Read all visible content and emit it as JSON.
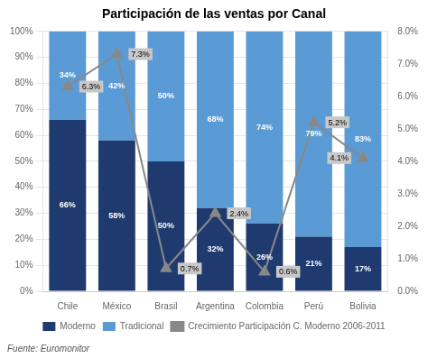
{
  "chart_data": {
    "type": "bar",
    "title": "Participación de las ventas por Canal",
    "categories": [
      "Chile",
      "México",
      "Brasil",
      "Argentina",
      "Colombia",
      "Perú",
      "Bolivia"
    ],
    "stacked": true,
    "series": [
      {
        "name": "Moderno",
        "color": "#1F3A6E",
        "values": [
          66,
          58,
          50,
          32,
          26,
          21,
          17
        ],
        "value_labels": [
          "66%",
          "58%",
          "50%",
          "32%",
          "26%",
          "21%",
          "17%"
        ]
      },
      {
        "name": "Tradicional",
        "color": "#5B9BD5",
        "values": [
          34,
          42,
          50,
          68,
          74,
          79,
          83
        ],
        "value_labels": [
          "34%",
          "42%",
          "50%",
          "68%",
          "74%",
          "79%",
          "83%"
        ]
      },
      {
        "name": "Crecimiento Participación C. Moderno 2006-2011",
        "type": "line",
        "axis": "y2",
        "color": "#888888",
        "marker": "triangle",
        "values": [
          6.3,
          7.3,
          0.7,
          2.4,
          0.6,
          5.2,
          4.1
        ],
        "value_labels": [
          "6.3%",
          "7.3%",
          "0.7%",
          "2.4%",
          "0.6%",
          "5.2%",
          "4.1%"
        ]
      }
    ],
    "ylim": [
      0,
      100
    ],
    "yticks": [
      {
        "value": 0,
        "label": "0%"
      },
      {
        "value": 10,
        "label": "10%"
      },
      {
        "value": 20,
        "label": "20%"
      },
      {
        "value": 30,
        "label": "30%"
      },
      {
        "value": 40,
        "label": "40%"
      },
      {
        "value": 50,
        "label": "50%"
      },
      {
        "value": 60,
        "label": "60%"
      },
      {
        "value": 70,
        "label": "70%"
      },
      {
        "value": 80,
        "label": "80%"
      },
      {
        "value": 90,
        "label": "90%"
      },
      {
        "value": 100,
        "label": "100%"
      }
    ],
    "y2lim": [
      0,
      8
    ],
    "y2ticks": [
      {
        "value": 0,
        "label": "0.0%"
      },
      {
        "value": 1,
        "label": "1.0%"
      },
      {
        "value": 2,
        "label": "2.0%"
      },
      {
        "value": 3,
        "label": "3.0%"
      },
      {
        "value": 4,
        "label": "4.0%"
      },
      {
        "value": 5,
        "label": "5.0%"
      },
      {
        "value": 6,
        "label": "6.0%"
      },
      {
        "value": 7,
        "label": "7.0%"
      },
      {
        "value": 8,
        "label": "8.0%"
      }
    ],
    "grid": true,
    "legend": "bottom",
    "data_labels": true,
    "annotations": [
      "Fuente: Euromonitor"
    ]
  }
}
